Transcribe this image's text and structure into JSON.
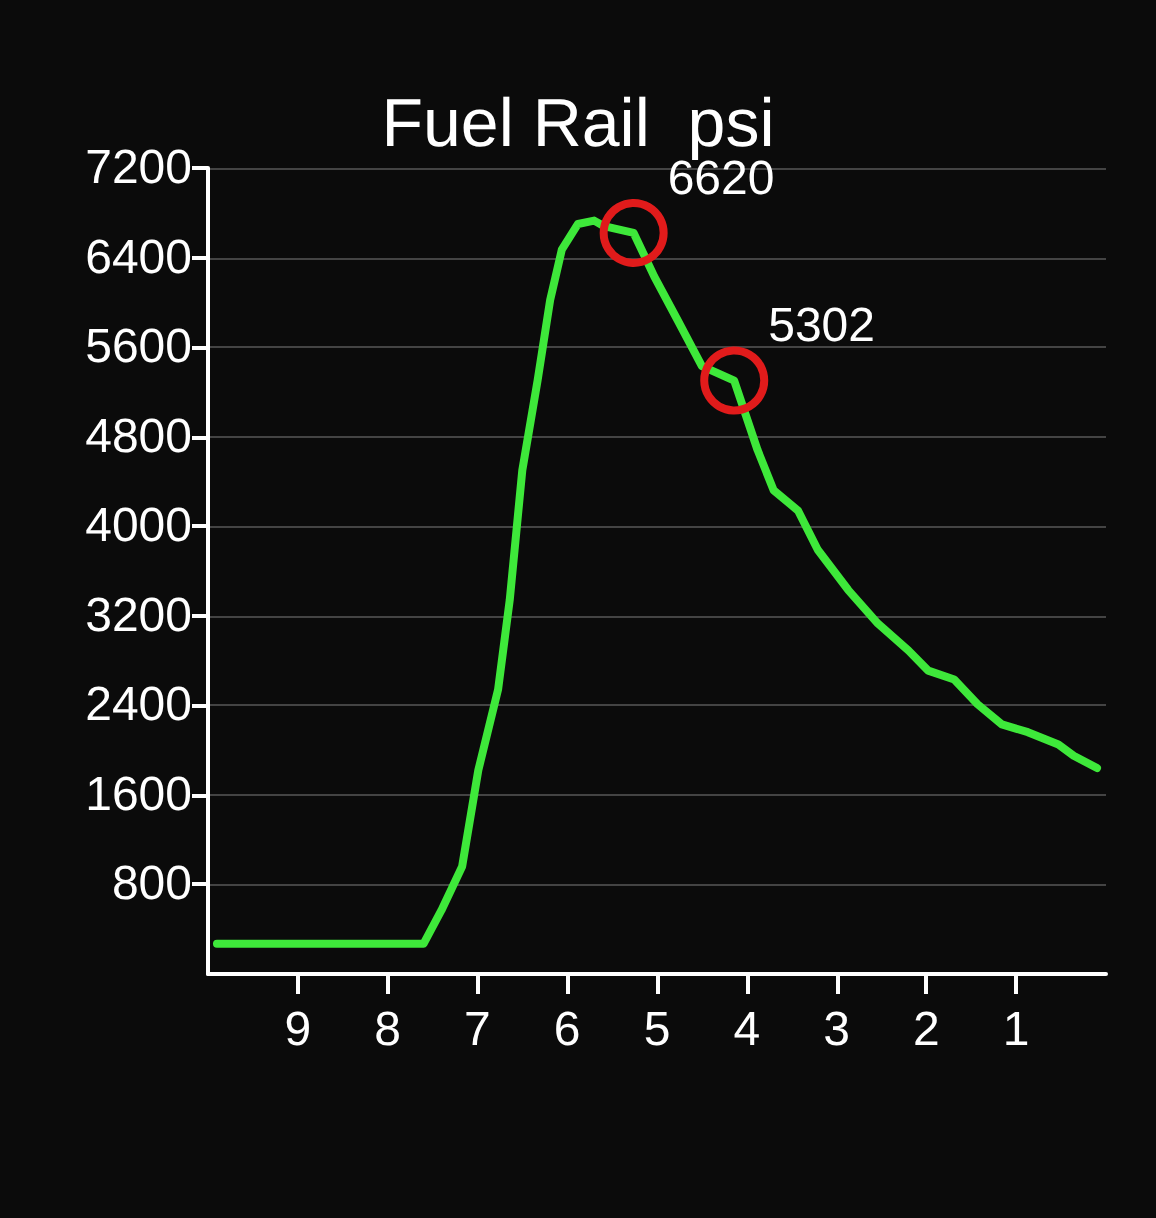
{
  "chart_data": {
    "type": "line",
    "title": "Fuel Rail  psi",
    "x": [
      9.9,
      7.6,
      7.4,
      7.17,
      6.99,
      6.77,
      6.64,
      6.5,
      6.33,
      6.19,
      6.06,
      5.88,
      5.7,
      5.59,
      5.26,
      5.03,
      4.77,
      4.5,
      4.14,
      3.88,
      3.7,
      3.43,
      3.21,
      2.87,
      2.54,
      2.2,
      1.98,
      1.69,
      1.43,
      1.16,
      0.87,
      0.53,
      0.36,
      0.1
    ],
    "series": [
      {
        "color": "#3ee83a",
        "values": [
          270,
          270,
          570,
          960,
          1820,
          2540,
          3340,
          4500,
          5300,
          6020,
          6470,
          6700,
          6730,
          6680,
          6620,
          6230,
          5840,
          5430,
          5300,
          4680,
          4320,
          4140,
          3790,
          3430,
          3130,
          2890,
          2710,
          2630,
          2410,
          2230,
          2160,
          2050,
          1950,
          1840
        ]
      }
    ],
    "annotations": [
      {
        "text": "6620",
        "x": 5.26,
        "y": 6620
      },
      {
        "text": "5302",
        "x": 4.14,
        "y": 5302
      }
    ],
    "xlim": [
      10,
      0
    ],
    "xticks": [
      9,
      8,
      7,
      6,
      5,
      4,
      3,
      2,
      1
    ],
    "ylim": [
      0,
      7200
    ],
    "yticks": [
      800,
      1600,
      2400,
      3200,
      4000,
      4800,
      5600,
      6400,
      7200
    ],
    "grid": "y",
    "marker": "none",
    "line_style": "solid"
  }
}
